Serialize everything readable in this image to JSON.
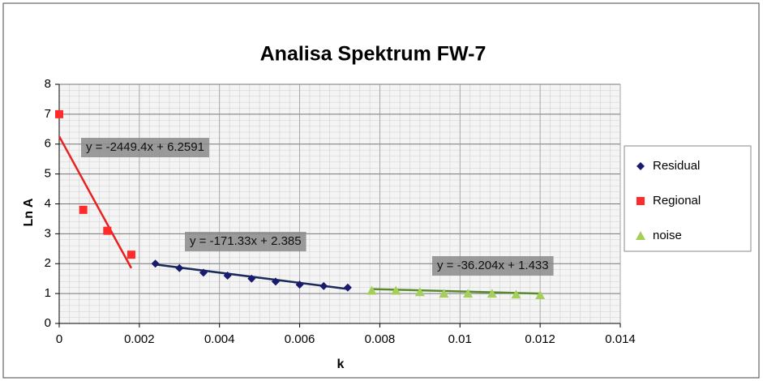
{
  "chart_data": {
    "type": "scatter",
    "title": "Analisa Spektrum FW-7",
    "x_label": "k",
    "y_label": "Ln A",
    "xlim": [
      0,
      0.014
    ],
    "ylim": [
      0,
      8
    ],
    "xticks": [
      0,
      0.002,
      0.004,
      0.006,
      0.008,
      0.01,
      0.012,
      0.014
    ],
    "yticks": [
      0,
      1,
      2,
      3,
      4,
      5,
      6,
      7,
      8
    ],
    "grid": true,
    "legend": "right",
    "series": [
      {
        "name": "Residual",
        "color": "#1a1a6e",
        "marker": "diamond",
        "x": [
          0.0024,
          0.003,
          0.0036,
          0.0042,
          0.0048,
          0.0054,
          0.006,
          0.0066,
          0.0072
        ],
        "values": [
          2.0,
          1.85,
          1.7,
          1.6,
          1.5,
          1.4,
          1.3,
          1.25,
          1.2
        ],
        "trendline": {
          "label": "y = -171.33x  + 2.385",
          "slope": -171.33,
          "intercept": 2.385,
          "color": "#1a2a5a"
        }
      },
      {
        "name": "Regional",
        "color": "#ff2a2a",
        "marker": "square",
        "x": [
          0,
          0.0006,
          0.0012,
          0.0018
        ],
        "values": [
          7.0,
          3.8,
          3.1,
          2.3
        ],
        "trendline": {
          "label": "y = -2449.4x  + 6.2591",
          "slope": -2449.4,
          "intercept": 6.2591,
          "color": "#e82020"
        }
      },
      {
        "name": "noise",
        "color": "#a6cf5a",
        "marker": "triangle",
        "x": [
          0.0078,
          0.0084,
          0.009,
          0.0096,
          0.0102,
          0.0108,
          0.0114,
          0.012
        ],
        "values": [
          1.1,
          1.1,
          1.05,
          1.0,
          1.0,
          1.0,
          0.97,
          0.95
        ],
        "trendline": {
          "label": "y = -36.204x  + 1.433",
          "slope": -36.204,
          "intercept": 1.433,
          "color": "#5a8a30"
        }
      }
    ]
  }
}
